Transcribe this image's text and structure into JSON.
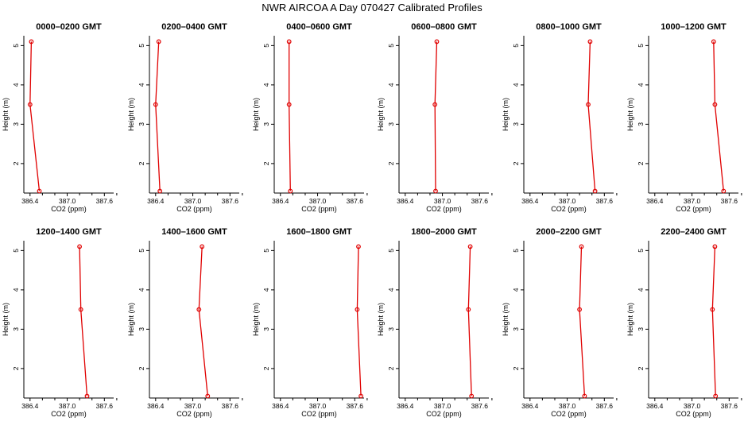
{
  "title": "NWR AIRCOA A  Day 070427  Calibrated Profiles",
  "colors": {
    "series": "#e00000",
    "axis": "#000000"
  },
  "chart_data": {
    "type": "scatter",
    "layout": "2x6 small multiples, points connected by lines",
    "xlabel": "CO2 (ppm)",
    "ylabel": "Height (m)",
    "xlim": [
      386.3,
      387.75
    ],
    "ylim": [
      1.25,
      5.25
    ],
    "xticks": [
      "386.4",
      "387.0",
      "387.6"
    ],
    "yticks": [
      "2",
      "3",
      "4",
      "5"
    ],
    "panels": [
      {
        "title": "0000–0200 GMT",
        "points": [
          {
            "x": 386.42,
            "y": 5.1
          },
          {
            "x": 386.4,
            "y": 3.5
          },
          {
            "x": 386.55,
            "y": 1.3
          }
        ]
      },
      {
        "title": "0200–0400 GMT",
        "points": [
          {
            "x": 386.45,
            "y": 5.1
          },
          {
            "x": 386.4,
            "y": 3.5
          },
          {
            "x": 386.47,
            "y": 1.3
          }
        ]
      },
      {
        "title": "0400–0600 GMT",
        "points": [
          {
            "x": 386.54,
            "y": 5.1
          },
          {
            "x": 386.54,
            "y": 3.5
          },
          {
            "x": 386.56,
            "y": 1.3
          }
        ]
      },
      {
        "title": "0600–0800 GMT",
        "points": [
          {
            "x": 386.91,
            "y": 5.1
          },
          {
            "x": 386.88,
            "y": 3.5
          },
          {
            "x": 386.89,
            "y": 1.3
          }
        ]
      },
      {
        "title": "0800–1000 GMT",
        "points": [
          {
            "x": 387.37,
            "y": 5.1
          },
          {
            "x": 387.34,
            "y": 3.5
          },
          {
            "x": 387.45,
            "y": 1.3
          }
        ]
      },
      {
        "title": "1000–1200 GMT",
        "points": [
          {
            "x": 387.35,
            "y": 5.1
          },
          {
            "x": 387.37,
            "y": 3.5
          },
          {
            "x": 387.51,
            "y": 1.3
          }
        ]
      },
      {
        "title": "1200–1400 GMT",
        "points": [
          {
            "x": 387.2,
            "y": 5.1
          },
          {
            "x": 387.22,
            "y": 3.5
          },
          {
            "x": 387.32,
            "y": 1.3
          }
        ]
      },
      {
        "title": "1400–1600 GMT",
        "points": [
          {
            "x": 387.15,
            "y": 5.1
          },
          {
            "x": 387.1,
            "y": 3.5
          },
          {
            "x": 387.24,
            "y": 1.3
          }
        ]
      },
      {
        "title": "1600–1800 GMT",
        "points": [
          {
            "x": 387.66,
            "y": 5.1
          },
          {
            "x": 387.64,
            "y": 3.5
          },
          {
            "x": 387.7,
            "y": 1.3
          }
        ]
      },
      {
        "title": "1800–2000 GMT",
        "points": [
          {
            "x": 387.45,
            "y": 5.1
          },
          {
            "x": 387.42,
            "y": 3.5
          },
          {
            "x": 387.47,
            "y": 1.3
          }
        ]
      },
      {
        "title": "2000–2200 GMT",
        "points": [
          {
            "x": 387.23,
            "y": 5.1
          },
          {
            "x": 387.2,
            "y": 3.5
          },
          {
            "x": 387.28,
            "y": 1.3
          }
        ]
      },
      {
        "title": "2200–2400 GMT",
        "points": [
          {
            "x": 387.37,
            "y": 5.1
          },
          {
            "x": 387.33,
            "y": 3.5
          },
          {
            "x": 387.38,
            "y": 1.3
          }
        ]
      }
    ]
  }
}
